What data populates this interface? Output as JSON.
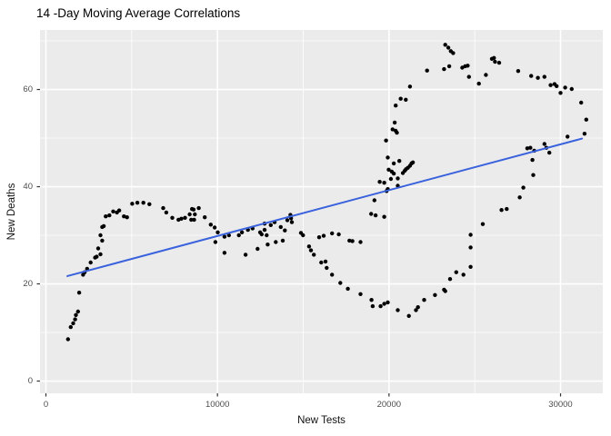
{
  "figure": {
    "background": "#FFFFFF"
  },
  "chart_data": {
    "type": "scatter",
    "title": "14 -Day Moving Average Correlations",
    "xlabel": "New Tests",
    "ylabel": "New Deaths",
    "x_tick_values": [
      0,
      10000,
      20000,
      30000
    ],
    "x_tick_labels": [
      "0",
      "10000",
      "20000",
      "30000"
    ],
    "y_tick_values": [
      0,
      20,
      40,
      60
    ],
    "y_tick_labels": [
      "0",
      "20",
      "40",
      "60"
    ],
    "x_minor": [
      5000,
      15000,
      25000
    ],
    "y_minor": [
      10,
      30,
      50,
      70
    ],
    "xlim": [
      -344,
      32464
    ],
    "ylim": [
      -2.52,
      72.25
    ],
    "grid": "on",
    "legend": "none",
    "panel_bg": "#EBEBEB",
    "grid_color": "#FFFFFF",
    "point_color": "#000000",
    "tick_color": "#333333",
    "tick_label_color": "#4D4D4D",
    "trend_line": {
      "type": "linear",
      "color": "#3A62DD",
      "width": 2,
      "x": [
        1250,
        31250
      ],
      "y": [
        21.6,
        49.9
      ]
    },
    "points": [
      [
        1290,
        8.6
      ],
      [
        1450,
        11.1
      ],
      [
        1590,
        11.9
      ],
      [
        1700,
        12.7
      ],
      [
        1750,
        13.6
      ],
      [
        1870,
        14.3
      ],
      [
        1940,
        18.2
      ],
      [
        2170,
        21.9
      ],
      [
        2260,
        22.4
      ],
      [
        2400,
        23.1
      ],
      [
        2610,
        24.4
      ],
      [
        2870,
        25.4
      ],
      [
        2960,
        25.6
      ],
      [
        3050,
        27.3
      ],
      [
        3180,
        26.1
      ],
      [
        3180,
        30.0
      ],
      [
        3280,
        28.9
      ],
      [
        3280,
        31.7
      ],
      [
        3370,
        31.9
      ],
      [
        3490,
        33.9
      ],
      [
        3700,
        34.1
      ],
      [
        3920,
        34.9
      ],
      [
        4140,
        34.7
      ],
      [
        4270,
        35.1
      ],
      [
        4550,
        33.9
      ],
      [
        4730,
        33.7
      ],
      [
        5030,
        36.5
      ],
      [
        5330,
        36.7
      ],
      [
        5680,
        36.7
      ],
      [
        6030,
        36.4
      ],
      [
        6840,
        35.6
      ],
      [
        7020,
        34.7
      ],
      [
        7370,
        33.6
      ],
      [
        7730,
        33.2
      ],
      [
        7900,
        33.4
      ],
      [
        8110,
        33.6
      ],
      [
        8380,
        34.3
      ],
      [
        8470,
        33.2
      ],
      [
        8520,
        35.4
      ],
      [
        8610,
        35.3
      ],
      [
        8640,
        33.2
      ],
      [
        8680,
        34.3
      ],
      [
        8910,
        35.6
      ],
      [
        9260,
        33.7
      ],
      [
        9610,
        32.2
      ],
      [
        9840,
        31.6
      ],
      [
        9880,
        28.6
      ],
      [
        10020,
        30.6
      ],
      [
        10410,
        29.7
      ],
      [
        10410,
        26.4
      ],
      [
        10670,
        30.0
      ],
      [
        11250,
        30.0
      ],
      [
        11430,
        30.6
      ],
      [
        11640,
        26.0
      ],
      [
        11780,
        31.1
      ],
      [
        12050,
        31.4
      ],
      [
        12340,
        27.2
      ],
      [
        12490,
        30.6
      ],
      [
        12580,
        30.2
      ],
      [
        12750,
        31.1
      ],
      [
        12750,
        32.4
      ],
      [
        12870,
        30.0
      ],
      [
        12930,
        28.1
      ],
      [
        13110,
        32.1
      ],
      [
        13330,
        32.7
      ],
      [
        13400,
        28.6
      ],
      [
        13690,
        31.7
      ],
      [
        13810,
        28.9
      ],
      [
        13930,
        31.0
      ],
      [
        14070,
        33.1
      ],
      [
        14250,
        34.2
      ],
      [
        14290,
        33.5
      ],
      [
        14340,
        32.7
      ],
      [
        14870,
        30.5
      ],
      [
        14990,
        30.0
      ],
      [
        15340,
        27.7
      ],
      [
        15450,
        26.9
      ],
      [
        15620,
        26.0
      ],
      [
        15930,
        29.6
      ],
      [
        16050,
        24.4
      ],
      [
        16190,
        29.9
      ],
      [
        16680,
        30.4
      ],
      [
        17070,
        30.2
      ],
      [
        17690,
        28.9
      ],
      [
        17870,
        28.8
      ],
      [
        18340,
        28.6
      ],
      [
        16300,
        24.6
      ],
      [
        16370,
        23.3
      ],
      [
        16680,
        21.9
      ],
      [
        17160,
        20.2
      ],
      [
        17600,
        19.0
      ],
      [
        18340,
        17.9
      ],
      [
        18980,
        16.7
      ],
      [
        19050,
        15.4
      ],
      [
        19510,
        15.4
      ],
      [
        19720,
        15.9
      ],
      [
        19930,
        16.2
      ],
      [
        20510,
        14.6
      ],
      [
        21160,
        13.4
      ],
      [
        21570,
        14.6
      ],
      [
        21690,
        15.2
      ],
      [
        22050,
        16.7
      ],
      [
        22680,
        17.7
      ],
      [
        23210,
        18.8
      ],
      [
        23280,
        18.5
      ],
      [
        23560,
        21.0
      ],
      [
        23920,
        22.4
      ],
      [
        24340,
        21.9
      ],
      [
        24760,
        23.5
      ],
      [
        24760,
        27.5
      ],
      [
        24760,
        30.1
      ],
      [
        25470,
        32.3
      ],
      [
        26560,
        35.2
      ],
      [
        26860,
        35.4
      ],
      [
        18960,
        34.4
      ],
      [
        19220,
        34.1
      ],
      [
        19720,
        33.8
      ],
      [
        19150,
        37.2
      ],
      [
        19460,
        41.0
      ],
      [
        19720,
        40.8
      ],
      [
        19860,
        39.1
      ],
      [
        19930,
        39.5
      ],
      [
        20510,
        40.2
      ],
      [
        20110,
        41.6
      ],
      [
        20510,
        41.7
      ],
      [
        19980,
        43.5
      ],
      [
        20160,
        43.1
      ],
      [
        20280,
        42.7
      ],
      [
        20810,
        42.8
      ],
      [
        20920,
        43.3
      ],
      [
        20990,
        43.6
      ],
      [
        21100,
        43.9
      ],
      [
        21220,
        44.3
      ],
      [
        21310,
        44.8
      ],
      [
        21390,
        45.0
      ],
      [
        20280,
        44.8
      ],
      [
        20600,
        45.3
      ],
      [
        19930,
        46.0
      ],
      [
        19830,
        49.5
      ],
      [
        20210,
        51.8
      ],
      [
        20390,
        51.5
      ],
      [
        20460,
        51.1
      ],
      [
        20330,
        53.2
      ],
      [
        20390,
        56.7
      ],
      [
        20680,
        58.1
      ],
      [
        20980,
        57.9
      ],
      [
        21220,
        60.6
      ],
      [
        22220,
        63.9
      ],
      [
        23210,
        64.2
      ],
      [
        23510,
        64.8
      ],
      [
        23280,
        69.2
      ],
      [
        23460,
        68.6
      ],
      [
        23600,
        67.9
      ],
      [
        23740,
        67.5
      ],
      [
        24270,
        64.5
      ],
      [
        24440,
        64.8
      ],
      [
        24590,
        64.9
      ],
      [
        24660,
        62.6
      ],
      [
        25240,
        61.2
      ],
      [
        25650,
        63.0
      ],
      [
        26000,
        66.3
      ],
      [
        26120,
        66.5
      ],
      [
        26180,
        65.7
      ],
      [
        26420,
        65.5
      ],
      [
        27530,
        63.8
      ],
      [
        28290,
        62.8
      ],
      [
        28680,
        62.4
      ],
      [
        29060,
        62.6
      ],
      [
        29420,
        60.9
      ],
      [
        29650,
        61.1
      ],
      [
        29770,
        60.7
      ],
      [
        30000,
        59.3
      ],
      [
        30270,
        60.4
      ],
      [
        30650,
        60.1
      ],
      [
        31200,
        57.3
      ],
      [
        31500,
        53.8
      ],
      [
        31400,
        50.9
      ],
      [
        30410,
        50.3
      ],
      [
        29060,
        48.8
      ],
      [
        29170,
        48.0
      ],
      [
        29350,
        47.0
      ],
      [
        28470,
        47.4
      ],
      [
        28060,
        47.9
      ],
      [
        28240,
        48.0
      ],
      [
        28410,
        42.4
      ],
      [
        28360,
        45.5
      ],
      [
        27830,
        39.8
      ],
      [
        27620,
        37.8
      ]
    ]
  }
}
